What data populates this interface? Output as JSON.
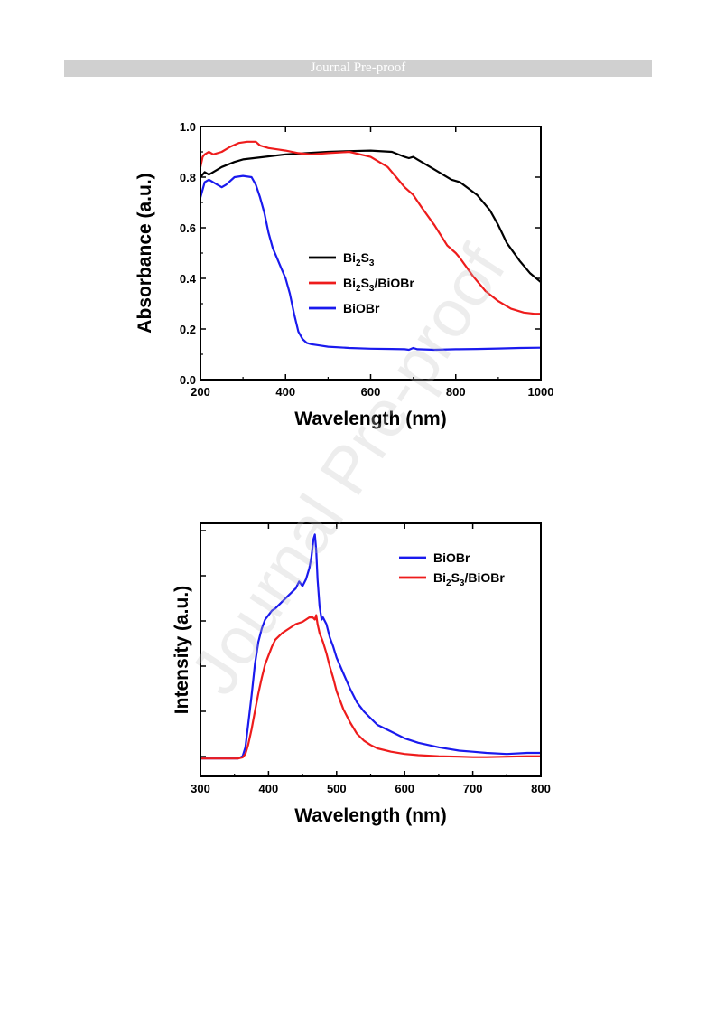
{
  "header": {
    "banner_text": "Journal Pre-proof"
  },
  "watermark": {
    "text": "Journal Pre-proof"
  },
  "colors": {
    "black": "#000000",
    "red": "#ee1c1c",
    "blue": "#1a1aee"
  },
  "chart_data": [
    {
      "type": "line",
      "xlabel": "Wavelength (nm)",
      "ylabel": "Absorbance (a.u.)",
      "xlim": [
        200,
        1000
      ],
      "ylim": [
        0.0,
        1.0
      ],
      "xticks": [
        "200",
        "400",
        "600",
        "800",
        "1000"
      ],
      "yticks": [
        "0.0",
        "0.2",
        "0.4",
        "0.6",
        "0.8",
        "1.0"
      ],
      "legend_position": "center",
      "series": [
        {
          "name": "Bi2S3",
          "color": "#000000",
          "x": [
            200,
            210,
            220,
            230,
            250,
            280,
            300,
            350,
            400,
            450,
            500,
            550,
            600,
            650,
            680,
            690,
            700,
            710,
            750,
            790,
            800,
            810,
            850,
            880,
            900,
            920,
            950,
            975,
            1000
          ],
          "y": [
            0.8,
            0.82,
            0.81,
            0.82,
            0.84,
            0.86,
            0.87,
            0.88,
            0.89,
            0.895,
            0.9,
            0.903,
            0.905,
            0.9,
            0.88,
            0.875,
            0.88,
            0.87,
            0.83,
            0.79,
            0.785,
            0.78,
            0.73,
            0.67,
            0.61,
            0.54,
            0.47,
            0.42,
            0.385
          ]
        },
        {
          "name": "Bi2S3/BiOBr",
          "color": "#ee1c1c",
          "x": [
            200,
            205,
            210,
            220,
            230,
            250,
            270,
            290,
            310,
            330,
            340,
            360,
            380,
            400,
            430,
            460,
            500,
            550,
            600,
            640,
            660,
            680,
            700,
            720,
            750,
            780,
            800,
            810,
            840,
            870,
            900,
            930,
            960,
            985,
            1000
          ],
          "y": [
            0.84,
            0.88,
            0.89,
            0.9,
            0.89,
            0.9,
            0.92,
            0.935,
            0.94,
            0.94,
            0.925,
            0.915,
            0.91,
            0.905,
            0.895,
            0.89,
            0.895,
            0.9,
            0.88,
            0.84,
            0.8,
            0.76,
            0.73,
            0.68,
            0.61,
            0.53,
            0.5,
            0.48,
            0.41,
            0.35,
            0.31,
            0.28,
            0.265,
            0.26,
            0.26
          ]
        },
        {
          "name": "BiOBr",
          "color": "#1a1aee",
          "x": [
            200,
            210,
            220,
            240,
            250,
            260,
            280,
            300,
            320,
            330,
            340,
            350,
            360,
            370,
            380,
            390,
            400,
            410,
            420,
            430,
            440,
            450,
            460,
            480,
            500,
            550,
            600,
            650,
            680,
            690,
            700,
            710,
            750,
            800,
            850,
            900,
            950,
            1000
          ],
          "y": [
            0.72,
            0.78,
            0.79,
            0.77,
            0.76,
            0.77,
            0.8,
            0.805,
            0.8,
            0.77,
            0.72,
            0.66,
            0.58,
            0.52,
            0.48,
            0.44,
            0.4,
            0.34,
            0.26,
            0.19,
            0.16,
            0.145,
            0.14,
            0.135,
            0.13,
            0.125,
            0.122,
            0.121,
            0.12,
            0.118,
            0.125,
            0.12,
            0.118,
            0.12,
            0.121,
            0.123,
            0.125,
            0.126
          ]
        }
      ]
    },
    {
      "type": "line",
      "xlabel": "Wavelength (nm)",
      "ylabel": "Intensity (a.u.)",
      "xlim": [
        300,
        800
      ],
      "ylim": [
        -0.08,
        1.05
      ],
      "xticks": [
        "300",
        "400",
        "500",
        "600",
        "700",
        "800"
      ],
      "legend_position": "top-right",
      "series": [
        {
          "name": "BiOBr",
          "color": "#1a1aee",
          "x": [
            300,
            320,
            340,
            355,
            362,
            366,
            370,
            375,
            380,
            385,
            390,
            395,
            400,
            405,
            410,
            420,
            430,
            440,
            445,
            450,
            455,
            460,
            463,
            466,
            468,
            470,
            472,
            475,
            478,
            480,
            485,
            490,
            495,
            500,
            510,
            520,
            530,
            540,
            550,
            560,
            580,
            600,
            620,
            650,
            680,
            700,
            720,
            750,
            780,
            800
          ],
          "y": [
            0.0,
            0.0,
            0.0,
            0.0,
            0.01,
            0.05,
            0.15,
            0.28,
            0.42,
            0.52,
            0.58,
            0.62,
            0.64,
            0.66,
            0.67,
            0.7,
            0.73,
            0.76,
            0.79,
            0.77,
            0.8,
            0.85,
            0.9,
            0.98,
            1.0,
            0.93,
            0.8,
            0.68,
            0.62,
            0.63,
            0.6,
            0.54,
            0.5,
            0.45,
            0.38,
            0.31,
            0.25,
            0.21,
            0.18,
            0.15,
            0.12,
            0.09,
            0.07,
            0.05,
            0.035,
            0.03,
            0.025,
            0.02,
            0.025,
            0.025
          ]
        },
        {
          "name": "Bi2S3/BiOBr",
          "color": "#ee1c1c",
          "x": [
            300,
            320,
            340,
            355,
            362,
            366,
            370,
            375,
            380,
            385,
            390,
            395,
            400,
            405,
            410,
            420,
            430,
            440,
            450,
            460,
            465,
            468,
            470,
            472,
            475,
            480,
            485,
            490,
            495,
            500,
            510,
            520,
            530,
            540,
            550,
            560,
            580,
            600,
            620,
            650,
            680,
            700,
            720,
            750,
            780,
            800
          ],
          "y": [
            0.0,
            0.0,
            0.0,
            0.0,
            0.005,
            0.02,
            0.06,
            0.13,
            0.21,
            0.29,
            0.36,
            0.42,
            0.46,
            0.5,
            0.53,
            0.56,
            0.58,
            0.6,
            0.61,
            0.63,
            0.63,
            0.62,
            0.64,
            0.6,
            0.56,
            0.52,
            0.47,
            0.41,
            0.36,
            0.3,
            0.22,
            0.16,
            0.11,
            0.08,
            0.06,
            0.045,
            0.03,
            0.02,
            0.015,
            0.01,
            0.008,
            0.006,
            0.006,
            0.008,
            0.01,
            0.01
          ]
        }
      ]
    }
  ]
}
